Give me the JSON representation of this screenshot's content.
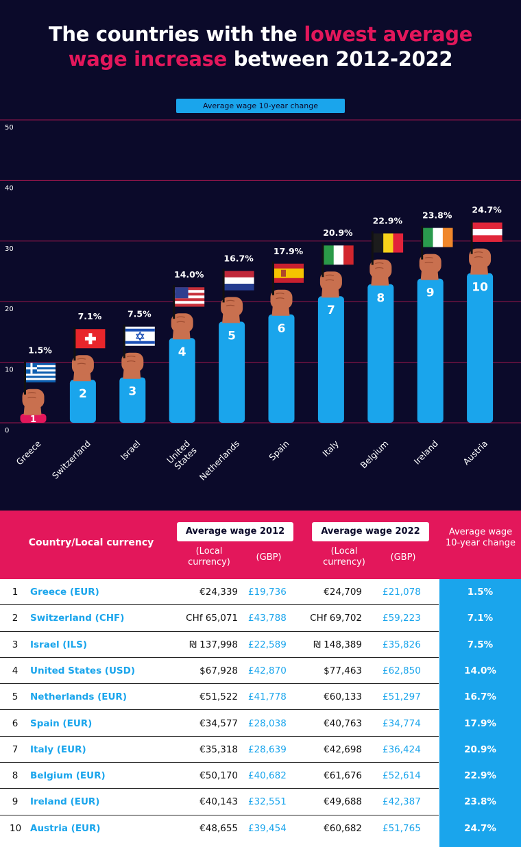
{
  "title": {
    "part1": "The countries with the ",
    "part2": "lowest average",
    "part3": "wage increase",
    "part4": " between 2012-2022"
  },
  "legend_label": "Average wage 10-year change",
  "colors": {
    "background": "#0b0a2a",
    "accent": "#e3175b",
    "bar": "#1aa5ec",
    "grid": "#a0174d",
    "skin": "#c9704f"
  },
  "chart_data": {
    "type": "bar",
    "categories": [
      "Greece",
      "Switzerland",
      "Israel",
      "United States",
      "Netherlands",
      "Spain",
      "Italy",
      "Belgium",
      "Ireland",
      "Austria"
    ],
    "values": [
      1.5,
      7.1,
      7.5,
      14.0,
      16.7,
      17.9,
      20.9,
      22.9,
      23.8,
      24.7
    ],
    "value_labels": [
      "1.5%",
      "7.1%",
      "7.5%",
      "14.0%",
      "16.7%",
      "17.9%",
      "20.9%",
      "22.9%",
      "23.8%",
      "24.7%"
    ],
    "ranks": [
      "1",
      "2",
      "3",
      "4",
      "5",
      "6",
      "7",
      "8",
      "9",
      "10"
    ],
    "y_ticks": [
      "0",
      "10",
      "20",
      "30",
      "40",
      "50"
    ],
    "ylim": [
      0,
      50
    ],
    "grid": true,
    "flag_icons": [
      "greece-flag-icon",
      "switzerland-flag-icon",
      "israel-flag-icon",
      "united-states-flag-icon",
      "netherlands-flag-icon",
      "spain-flag-icon",
      "italy-flag-icon",
      "belgium-flag-icon",
      "ireland-flag-icon",
      "austria-flag-icon"
    ]
  },
  "table": {
    "header_country": "Country/Local currency",
    "header_2012": "Average wage 2012",
    "header_2022": "Average wage 2022",
    "sub_local": "(Local currency)",
    "sub_gbp": "(GBP)",
    "header_change": "Average wage 10-year change",
    "rows": [
      {
        "rank": "1",
        "country": "Greece (EUR)",
        "local_2012": "€24,339",
        "gbp_2012": "£19,736",
        "local_2022": "€24,709",
        "gbp_2022": "£21,078",
        "change": "1.5%"
      },
      {
        "rank": "2",
        "country": "Switzerland (CHF)",
        "local_2012": "CHf 65,071",
        "gbp_2012": "£43,788",
        "local_2022": "CHf 69,702",
        "gbp_2022": "£59,223",
        "change": "7.1%"
      },
      {
        "rank": "3",
        "country": "Israel (ILS)",
        "local_2012": "₪ 137,998",
        "gbp_2012": "£22,589",
        "local_2022": "₪ 148,389",
        "gbp_2022": "£35,826",
        "change": "7.5%"
      },
      {
        "rank": "4",
        "country": "United States (USD)",
        "local_2012": "$67,928",
        "gbp_2012": "£42,870",
        "local_2022": "$77,463",
        "gbp_2022": "£62,850",
        "change": "14.0%"
      },
      {
        "rank": "5",
        "country": "Netherlands (EUR)",
        "local_2012": "€51,522",
        "gbp_2012": "£41,778",
        "local_2022": "€60,133",
        "gbp_2022": "£51,297",
        "change": "16.7%"
      },
      {
        "rank": "6",
        "country": "Spain (EUR)",
        "local_2012": "€34,577",
        "gbp_2012": "£28,038",
        "local_2022": "€40,763",
        "gbp_2022": "£34,774",
        "change": "17.9%"
      },
      {
        "rank": "7",
        "country": "Italy (EUR)",
        "local_2012": "€35,318",
        "gbp_2012": "£28,639",
        "local_2022": "€42,698",
        "gbp_2022": "£36,424",
        "change": "20.9%"
      },
      {
        "rank": "8",
        "country": "Belgium (EUR)",
        "local_2012": "€50,170",
        "gbp_2012": "£40,682",
        "local_2022": "€61,676",
        "gbp_2022": "£52,614",
        "change": "22.9%"
      },
      {
        "rank": "9",
        "country": "Ireland (EUR)",
        "local_2012": "€40,143",
        "gbp_2012": "£32,551",
        "local_2022": "€49,688",
        "gbp_2022": "£42,387",
        "change": "23.8%"
      },
      {
        "rank": "10",
        "country": "Austria (EUR)",
        "local_2012": "€48,655",
        "gbp_2012": "£39,454",
        "local_2022": "€60,682",
        "gbp_2022": "£51,765",
        "change": "24.7%"
      }
    ]
  }
}
